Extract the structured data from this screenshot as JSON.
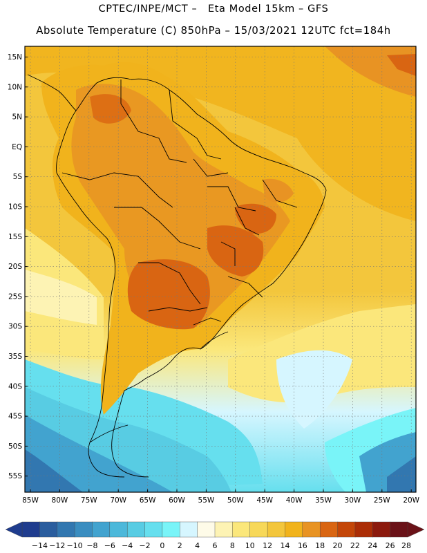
{
  "header": {
    "title_line1": "CPTEC/INPE/MCT –   Eta Model 15km – GFS",
    "title_line2": "Absolute Temperature (C) 850hPa – 15/03/2021 12UTC fct=184h"
  },
  "map": {
    "lat_labels": [
      "15N",
      "10N",
      "5N",
      "EQ",
      "5S",
      "10S",
      "15S",
      "20S",
      "25S",
      "30S",
      "35S",
      "40S",
      "45S",
      "50S",
      "55S"
    ],
    "lon_labels": [
      "85W",
      "80W",
      "75W",
      "70W",
      "65W",
      "60W",
      "55W",
      "50W",
      "45W",
      "40W",
      "35W",
      "30W",
      "25W",
      "20W"
    ],
    "field": "Absolute Temperature (C) 850hPa",
    "gridlines": "dotted"
  },
  "colorbar": {
    "labels": [
      "-14",
      "-12",
      "-10",
      "-8",
      "-6",
      "-4",
      "-2",
      "0",
      "2",
      "4",
      "6",
      "8",
      "10",
      "12",
      "14",
      "16",
      "18",
      "20",
      "22",
      "24",
      "26",
      "28"
    ],
    "colors": [
      "#1f3c8e",
      "#2a5d9e",
      "#3277b0",
      "#3a8dc0",
      "#42a3cf",
      "#4cb8da",
      "#58cce3",
      "#66dfee",
      "#79f4f8",
      "#d6f6ff",
      "#fefbe8",
      "#fdf3b4",
      "#fbe77b",
      "#f7d859",
      "#f3c63c",
      "#f1b31c",
      "#e89323",
      "#d96512",
      "#c44608",
      "#ab2d06",
      "#8c1a0d",
      "#6a1218"
    ]
  }
}
